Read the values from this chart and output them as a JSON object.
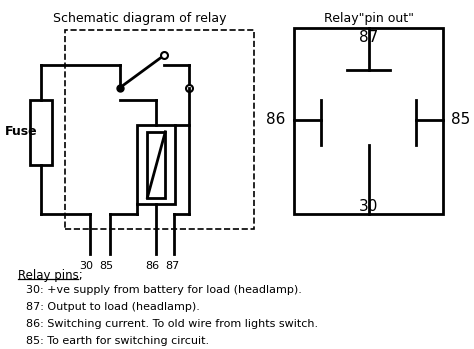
{
  "title_left": "Schematic diagram of relay",
  "title_right": "Relay\"pin out\"",
  "fuse_label": "Fuse",
  "relay_pins_header": "Relay pins;",
  "relay_pins_desc": [
    "30: +ve supply from battery for load (headlamp).",
    "87: Output to load (headlamp).",
    "86: Switching current. To old wire from lights switch.",
    "85: To earth for switching circuit."
  ],
  "bg_color": "#ffffff",
  "fg_color": "#000000",
  "font_size_title": 9,
  "font_size_labels": 8,
  "font_size_desc": 8
}
